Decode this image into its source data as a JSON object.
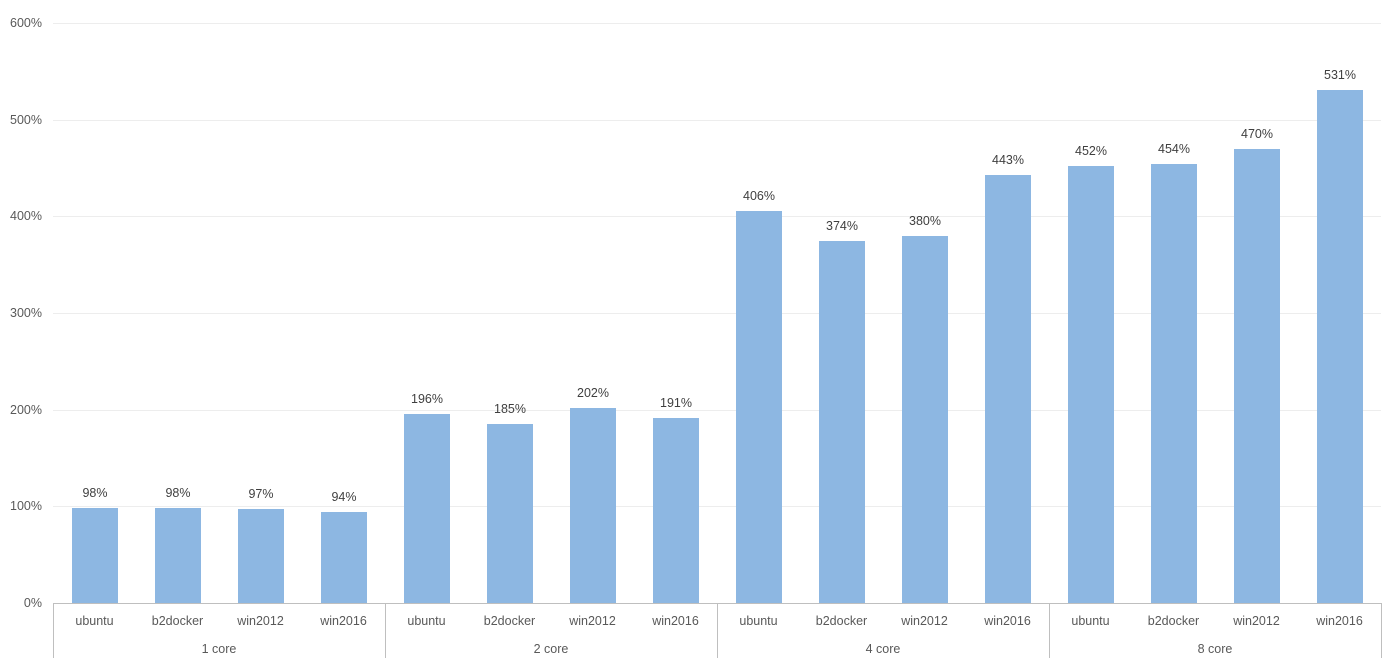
{
  "chart_data": {
    "type": "bar",
    "title": "",
    "xlabel": "",
    "ylabel": "",
    "ylim": [
      0,
      600
    ],
    "grid": true,
    "legend": null,
    "y_ticks": [
      {
        "value": 0,
        "label": "0%"
      },
      {
        "value": 100,
        "label": "100%"
      },
      {
        "value": 200,
        "label": "200%"
      },
      {
        "value": 300,
        "label": "300%"
      },
      {
        "value": 400,
        "label": "400%"
      },
      {
        "value": 500,
        "label": "500%"
      },
      {
        "value": 600,
        "label": "600%"
      }
    ],
    "groups": [
      {
        "label": "1 core",
        "bars": [
          {
            "category": "ubuntu",
            "value": 98,
            "value_label": "98%"
          },
          {
            "category": "b2docker",
            "value": 98,
            "value_label": "98%"
          },
          {
            "category": "win2012",
            "value": 97,
            "value_label": "97%"
          },
          {
            "category": "win2016",
            "value": 94,
            "value_label": "94%"
          }
        ]
      },
      {
        "label": "2 core",
        "bars": [
          {
            "category": "ubuntu",
            "value": 196,
            "value_label": "196%"
          },
          {
            "category": "b2docker",
            "value": 185,
            "value_label": "185%"
          },
          {
            "category": "win2012",
            "value": 202,
            "value_label": "202%"
          },
          {
            "category": "win2016",
            "value": 191,
            "value_label": "191%"
          }
        ]
      },
      {
        "label": "4 core",
        "bars": [
          {
            "category": "ubuntu",
            "value": 406,
            "value_label": "406%"
          },
          {
            "category": "b2docker",
            "value": 374,
            "value_label": "374%"
          },
          {
            "category": "win2012",
            "value": 380,
            "value_label": "380%"
          },
          {
            "category": "win2016",
            "value": 443,
            "value_label": "443%"
          }
        ]
      },
      {
        "label": "8 core",
        "bars": [
          {
            "category": "ubuntu",
            "value": 452,
            "value_label": "452%"
          },
          {
            "category": "b2docker",
            "value": 454,
            "value_label": "454%"
          },
          {
            "category": "win2012",
            "value": 470,
            "value_label": "470%"
          },
          {
            "category": "win2016",
            "value": 531,
            "value_label": "531%"
          }
        ]
      }
    ],
    "colors": {
      "bar_fill": "#8db7e2",
      "axis_line": "#bfbfbf",
      "gridline": "#ededed",
      "tick_label": "#595959",
      "data_label": "#3f3f3f",
      "background": "#ffffff"
    }
  }
}
